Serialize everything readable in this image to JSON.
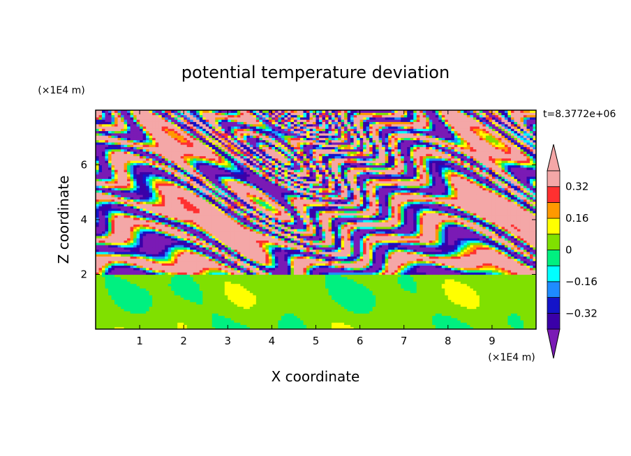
{
  "chart_data": {
    "type": "heatmap",
    "title": "potential temperature deviation",
    "xlabel": "X coordinate",
    "ylabel": "Z coordinate",
    "x_unit": "(×1E4 m)",
    "y_unit": "(×1E4 m)",
    "time_label": "t=8.3772e+06",
    "xlim": [
      0,
      10
    ],
    "ylim": [
      0,
      8
    ],
    "x_ticks": [
      "1",
      "2",
      "3",
      "4",
      "5",
      "6",
      "7",
      "8",
      "9"
    ],
    "y_ticks": [
      "2",
      "4",
      "6"
    ],
    "colorbar": {
      "levels": [
        -0.4,
        -0.32,
        -0.24,
        -0.16,
        -0.08,
        0,
        0.08,
        0.16,
        0.24,
        0.32,
        0.4
      ],
      "colors": [
        "#7a1ab5",
        "#3a00a8",
        "#1414c8",
        "#1e8cff",
        "#00ffff",
        "#00f080",
        "#80e000",
        "#ffff00",
        "#ff9900",
        "#ff3030",
        "#f4a7a7"
      ],
      "under_color": "#7a1ab5",
      "over_color": "#f4a7a7",
      "tick_labels": [
        "0.32",
        "0.16",
        "0",
        "−0.16",
        "−0.32"
      ]
    }
  }
}
